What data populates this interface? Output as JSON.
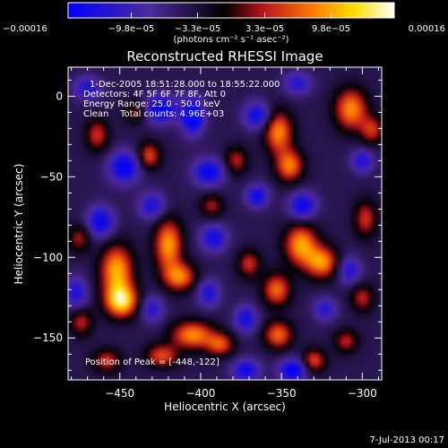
{
  "chart_data": {
    "type": "heatmap",
    "title": "Reconstructed RHESSI Image",
    "xlabel": "Heliocentric X (arcsec)",
    "ylabel": "Heliocentric Y (arcsec)",
    "xlim": [
      -482,
      -288
    ],
    "ylim": [
      -176,
      18
    ],
    "x_ticks": [
      -450,
      -400,
      -350,
      -300
    ],
    "y_ticks": [
      0,
      -50,
      -100,
      -150
    ],
    "x_tick_labels": [
      "−450",
      "−400",
      "−350",
      "−300"
    ],
    "y_tick_labels": [
      "0",
      "−50",
      "−100",
      "−150"
    ],
    "colorbar": {
      "range": [
        -0.00016,
        0.00016
      ],
      "tick_values": [
        -0.00016,
        -9.8e-05,
        -3.3e-05,
        3.3e-05,
        9.8e-05,
        0.00016
      ],
      "tick_labels": [
        "−0.00016",
        "−9.8e−05",
        "−3.3e−05",
        "3.3e−05",
        "9.8e−05",
        "0.00016"
      ],
      "unit_label": "(photons cm⁻² s⁻¹ asec⁻²)",
      "colors": [
        "#0000ff",
        "#4e2a9c",
        "#000000",
        "#b8141c",
        "#ff7a00",
        "#ffe000",
        "#ffffff"
      ]
    },
    "annotations": [
      "1-Dec-2005 18:51:28.000 to 18:55:22.000",
      "Detectors: 4F 5F 6F 7F 8F, Att 0",
      "Energy Range: 25.0 - 50.0 keV",
      "Clean    Total counts: 4.96E+03"
    ],
    "peak_label": "Position of Peak = [-448,-122]",
    "peak": {
      "x": -448,
      "y": -122
    },
    "blobs": [
      {
        "x": -452,
        "y": -108,
        "sx": 7,
        "sy": 11,
        "a": 1.0
      },
      {
        "x": -449,
        "y": -127,
        "sx": 7,
        "sy": 7,
        "a": 1.15
      },
      {
        "x": -420,
        "y": -92,
        "sx": 6,
        "sy": 11,
        "a": 0.95
      },
      {
        "x": -413,
        "y": -112,
        "sx": 7,
        "sy": 6,
        "a": 0.85
      },
      {
        "x": -338,
        "y": -92,
        "sx": 7,
        "sy": 9,
        "a": 0.95
      },
      {
        "x": -325,
        "y": -103,
        "sx": 7,
        "sy": 7,
        "a": 0.9
      },
      {
        "x": -353,
        "y": -120,
        "sx": 6,
        "sy": 7,
        "a": 0.8
      },
      {
        "x": -370,
        "y": -104,
        "sx": 5,
        "sy": 6,
        "a": 0.6
      },
      {
        "x": -405,
        "y": -148,
        "sx": 9,
        "sy": 6,
        "a": 0.9
      },
      {
        "x": -388,
        "y": -154,
        "sx": 6,
        "sy": 5,
        "a": 0.7
      },
      {
        "x": -424,
        "y": -161,
        "sx": 7,
        "sy": 5,
        "a": 0.7
      },
      {
        "x": -352,
        "y": -148,
        "sx": 6,
        "sy": 6,
        "a": 0.8
      },
      {
        "x": -330,
        "y": -164,
        "sx": 5,
        "sy": 5,
        "a": 0.7
      },
      {
        "x": -352,
        "y": -22,
        "sx": 6,
        "sy": 9,
        "a": 0.9
      },
      {
        "x": -345,
        "y": -43,
        "sx": 6,
        "sy": 7,
        "a": 0.85
      },
      {
        "x": -307,
        "y": -8,
        "sx": 7,
        "sy": 9,
        "a": 0.9
      },
      {
        "x": -294,
        "y": -21,
        "sx": 5,
        "sy": 6,
        "a": 0.6
      },
      {
        "x": -432,
        "y": -37,
        "sx": 5,
        "sy": 6,
        "a": 0.7
      },
      {
        "x": -464,
        "y": -24,
        "sx": 5,
        "sy": 7,
        "a": 0.6
      },
      {
        "x": -474,
        "y": -140,
        "sx": 5,
        "sy": 6,
        "a": 0.55
      },
      {
        "x": -458,
        "y": -164,
        "sx": 6,
        "sy": 5,
        "a": 0.6
      },
      {
        "x": -298,
        "y": -76,
        "sx": 5,
        "sy": 8,
        "a": 0.6
      },
      {
        "x": -300,
        "y": -125,
        "sx": 5,
        "sy": 6,
        "a": 0.55
      },
      {
        "x": -378,
        "y": -40,
        "sx": 5,
        "sy": 6,
        "a": 0.55
      },
      {
        "x": -393,
        "y": -68,
        "sx": 5,
        "sy": 5,
        "a": 0.5
      },
      {
        "x": -475,
        "y": -88,
        "sx": 5,
        "sy": 6,
        "a": 0.5
      },
      {
        "x": -310,
        "y": -152,
        "sx": 5,
        "sy": 5,
        "a": 0.55
      },
      {
        "x": -440,
        "y": -10,
        "sx": 5,
        "sy": 5,
        "a": 0.45
      },
      {
        "x": -405,
        "y": -12,
        "sx": 5,
        "sy": 8,
        "a": -0.95
      },
      {
        "x": -425,
        "y": -8,
        "sx": 7,
        "sy": 6,
        "a": -0.85
      },
      {
        "x": -447,
        "y": -44,
        "sx": 7,
        "sy": 7,
        "a": -0.8
      },
      {
        "x": -395,
        "y": -47,
        "sx": 7,
        "sy": 6,
        "a": -0.75
      },
      {
        "x": -365,
        "y": -12,
        "sx": 6,
        "sy": 6,
        "a": -0.7
      },
      {
        "x": -365,
        "y": -62,
        "sx": 5,
        "sy": 5,
        "a": -0.7
      },
      {
        "x": -337,
        "y": -68,
        "sx": 6,
        "sy": 6,
        "a": -0.75
      },
      {
        "x": -462,
        "y": -78,
        "sx": 6,
        "sy": 7,
        "a": -0.75
      },
      {
        "x": -430,
        "y": -68,
        "sx": 6,
        "sy": 6,
        "a": -0.6
      },
      {
        "x": -392,
        "y": -88,
        "sx": 6,
        "sy": 6,
        "a": -0.65
      },
      {
        "x": -395,
        "y": -122,
        "sx": 5,
        "sy": 6,
        "a": -0.6
      },
      {
        "x": -430,
        "y": -132,
        "sx": 5,
        "sy": 6,
        "a": -0.55
      },
      {
        "x": -372,
        "y": -138,
        "sx": 5,
        "sy": 6,
        "a": -0.65
      },
      {
        "x": -372,
        "y": -170,
        "sx": 6,
        "sy": 5,
        "a": -0.7
      },
      {
        "x": -343,
        "y": -170,
        "sx": 6,
        "sy": 5,
        "a": -0.85
      },
      {
        "x": -308,
        "y": -108,
        "sx": 5,
        "sy": 6,
        "a": -0.6
      },
      {
        "x": -323,
        "y": -132,
        "sx": 5,
        "sy": 5,
        "a": -0.55
      },
      {
        "x": -477,
        "y": -122,
        "sx": 5,
        "sy": 7,
        "a": -0.6
      },
      {
        "x": -300,
        "y": -40,
        "sx": 5,
        "sy": 5,
        "a": -0.6
      },
      {
        "x": -340,
        "y": 8,
        "sx": 6,
        "sy": 5,
        "a": -0.55
      },
      {
        "x": -470,
        "y": 5,
        "sx": 6,
        "sy": 5,
        "a": -0.6
      }
    ]
  },
  "footer_date": "7-Jul-2013 00:17"
}
